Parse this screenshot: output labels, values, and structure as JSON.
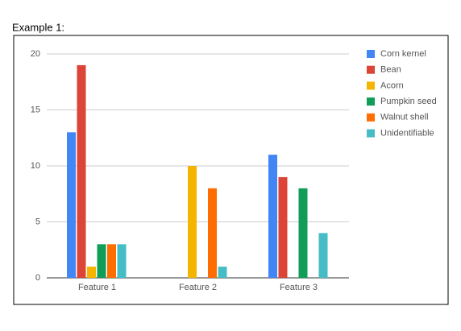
{
  "chart_data": {
    "type": "bar",
    "title": "Example 1:",
    "categories": [
      "Feature 1",
      "Feature 2",
      "Feature 3"
    ],
    "series": [
      {
        "name": "Corn kernel",
        "color": "#4285f4",
        "values": [
          13,
          0,
          11
        ]
      },
      {
        "name": "Bean",
        "color": "#db4437",
        "values": [
          19,
          0,
          9
        ]
      },
      {
        "name": "Acorn",
        "color": "#f4b400",
        "values": [
          1,
          10,
          0
        ]
      },
      {
        "name": "Pumpkin seed",
        "color": "#0f9d58",
        "values": [
          3,
          0,
          8
        ]
      },
      {
        "name": "Walnut shell",
        "color": "#ff6d00",
        "values": [
          3,
          8,
          0
        ]
      },
      {
        "name": "Unidentifiable",
        "color": "#46bdc6",
        "values": [
          3,
          1,
          4
        ]
      }
    ],
    "ylim": [
      0,
      20
    ],
    "yticks": [
      0,
      5,
      10,
      15,
      20
    ],
    "grid": true,
    "legend": "right"
  }
}
